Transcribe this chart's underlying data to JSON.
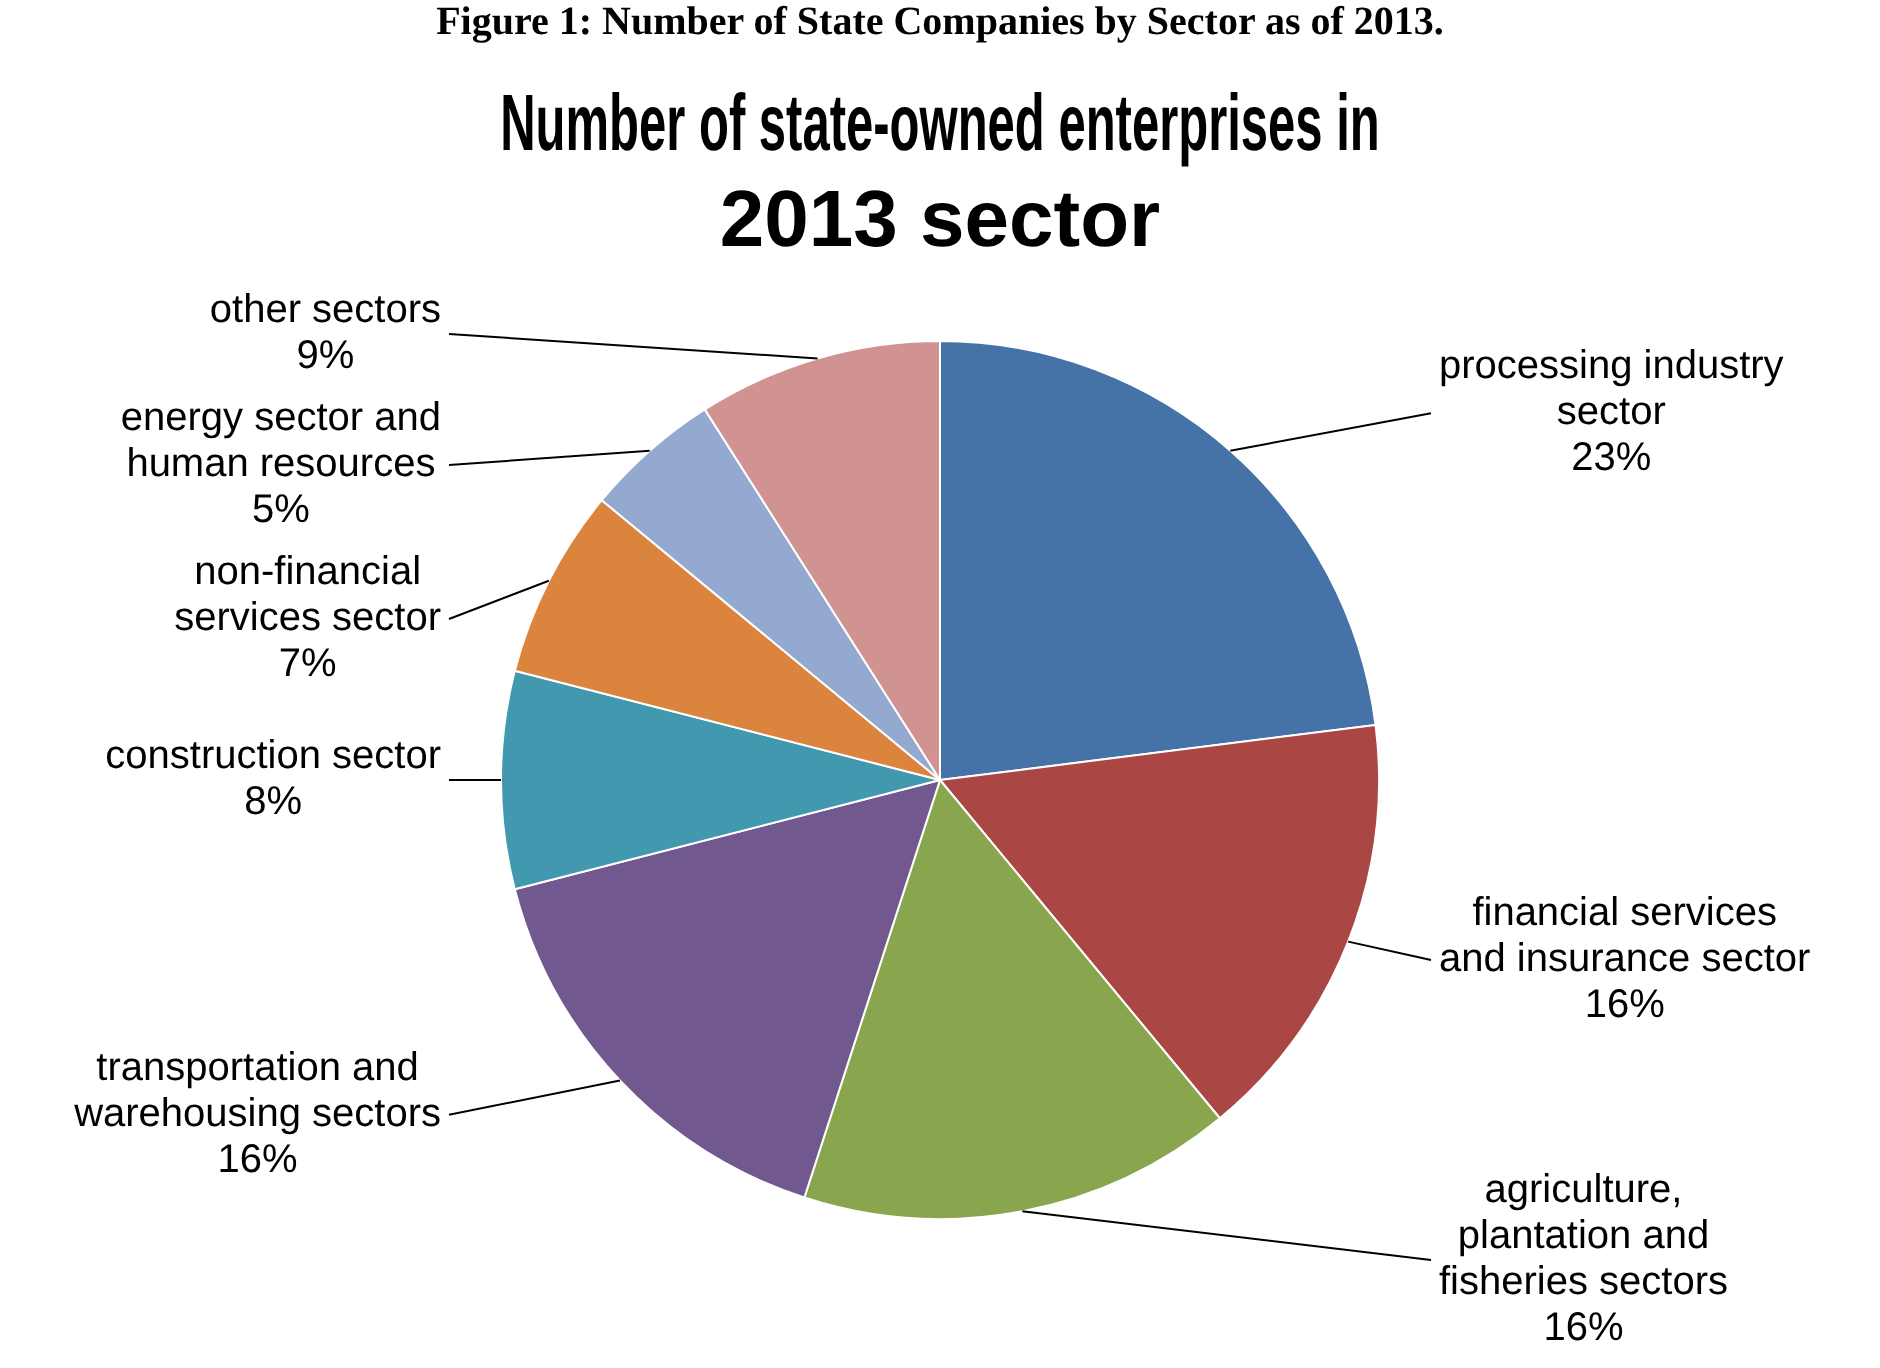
{
  "chart_data": {
    "type": "pie",
    "title": "Number of state-owned enterprises in 2013 sector",
    "annotations": [
      "Figure 1: Number of State Companies by Sector as of 2013."
    ],
    "categories": [
      "processing industry sector",
      "financial services and insurance sector",
      "agriculture, plantation and fisheries sectors",
      "transportation and warehousing sectors",
      "construction sector",
      "non-financial services sector",
      "energy sector and human resources",
      "other sectors"
    ],
    "values": [
      23,
      16,
      16,
      16,
      8,
      7,
      5,
      9
    ],
    "value_labels": [
      "23%",
      "16%",
      "16%",
      "16%",
      "8%",
      "7%",
      "5%",
      "9%"
    ],
    "colors": [
      "#4572a7",
      "#aa4643",
      "#89a54e",
      "#71588f",
      "#4198af",
      "#db843d",
      "#93a9cf",
      "#d19392"
    ],
    "legend": false
  }
}
